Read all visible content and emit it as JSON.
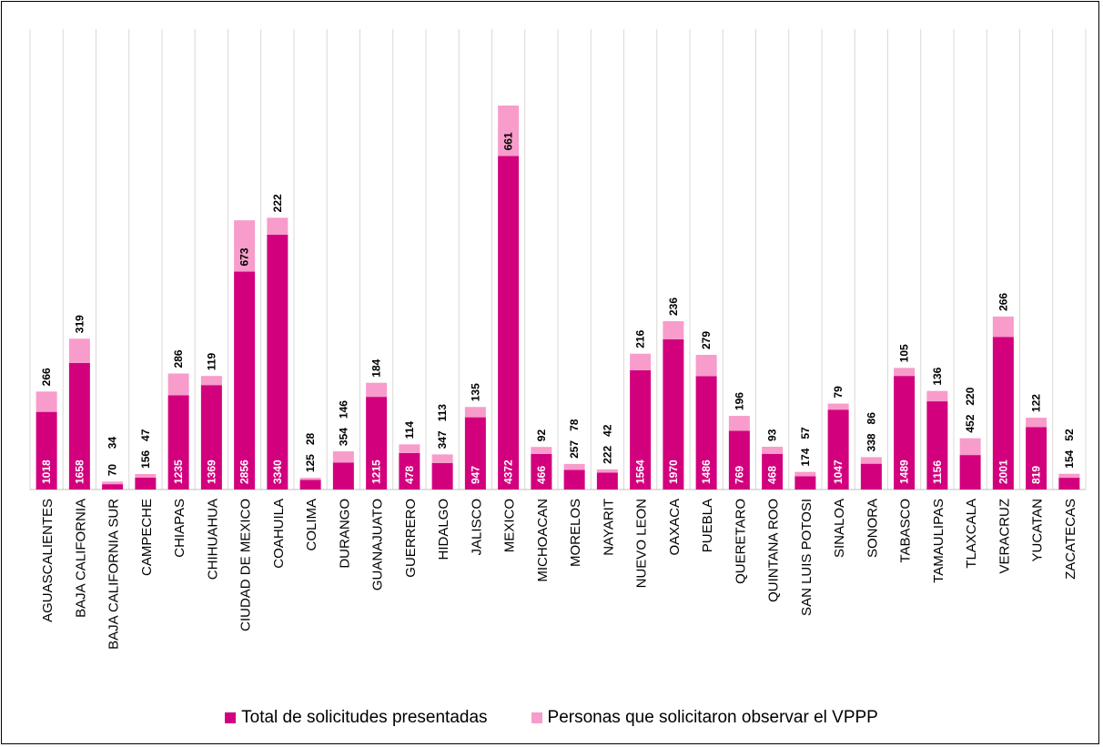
{
  "chart_data": {
    "type": "bar",
    "stacked": true,
    "orientation": "vertical",
    "grid": "vertical-separators",
    "legend_position": "bottom",
    "categories": [
      "AGUASCALIENTES",
      "BAJA CALIFORNIA",
      "BAJA CALIFORNIA SUR",
      "CAMPECHE",
      "CHIAPAS",
      "CHIHUAHUA",
      "CIUDAD DE MEXICO",
      "COAHUILA",
      "COLIMA",
      "DURANGO",
      "GUANAJUATO",
      "GUERRERO",
      "HIDALGO",
      "JALISCO",
      "MEXICO",
      "MICHOACAN",
      "MORELOS",
      "NAYARIT",
      "NUEVO LEON",
      "OAXACA",
      "PUEBLA",
      "QUERETARO",
      "QUINTANA ROO",
      "SAN LUIS POTOSI",
      "SINALOA",
      "SONORA",
      "TABASCO",
      "TAMAULIPAS",
      "TLAXCALA",
      "VERACRUZ",
      "YUCATAN",
      "ZACATECAS"
    ],
    "series": [
      {
        "name": "Total de solicitudes presentadas",
        "color": "#d3007e",
        "values": [
          1018,
          1658,
          70,
          156,
          1235,
          1369,
          2856,
          3340,
          125,
          354,
          1215,
          478,
          347,
          947,
          4372,
          466,
          257,
          222,
          1564,
          1970,
          1486,
          769,
          468,
          174,
          1047,
          338,
          1489,
          1156,
          452,
          2001,
          819,
          154
        ]
      },
      {
        "name": "Personas que solicitaron observar el VPPP",
        "color": "#f79ccb",
        "values": [
          266,
          319,
          34,
          47,
          286,
          119,
          673,
          222,
          28,
          146,
          184,
          114,
          113,
          135,
          661,
          92,
          78,
          42,
          216,
          236,
          279,
          196,
          93,
          57,
          79,
          86,
          105,
          136,
          220,
          266,
          122,
          52
        ]
      }
    ],
    "ylim": [
      0,
      5600
    ]
  }
}
